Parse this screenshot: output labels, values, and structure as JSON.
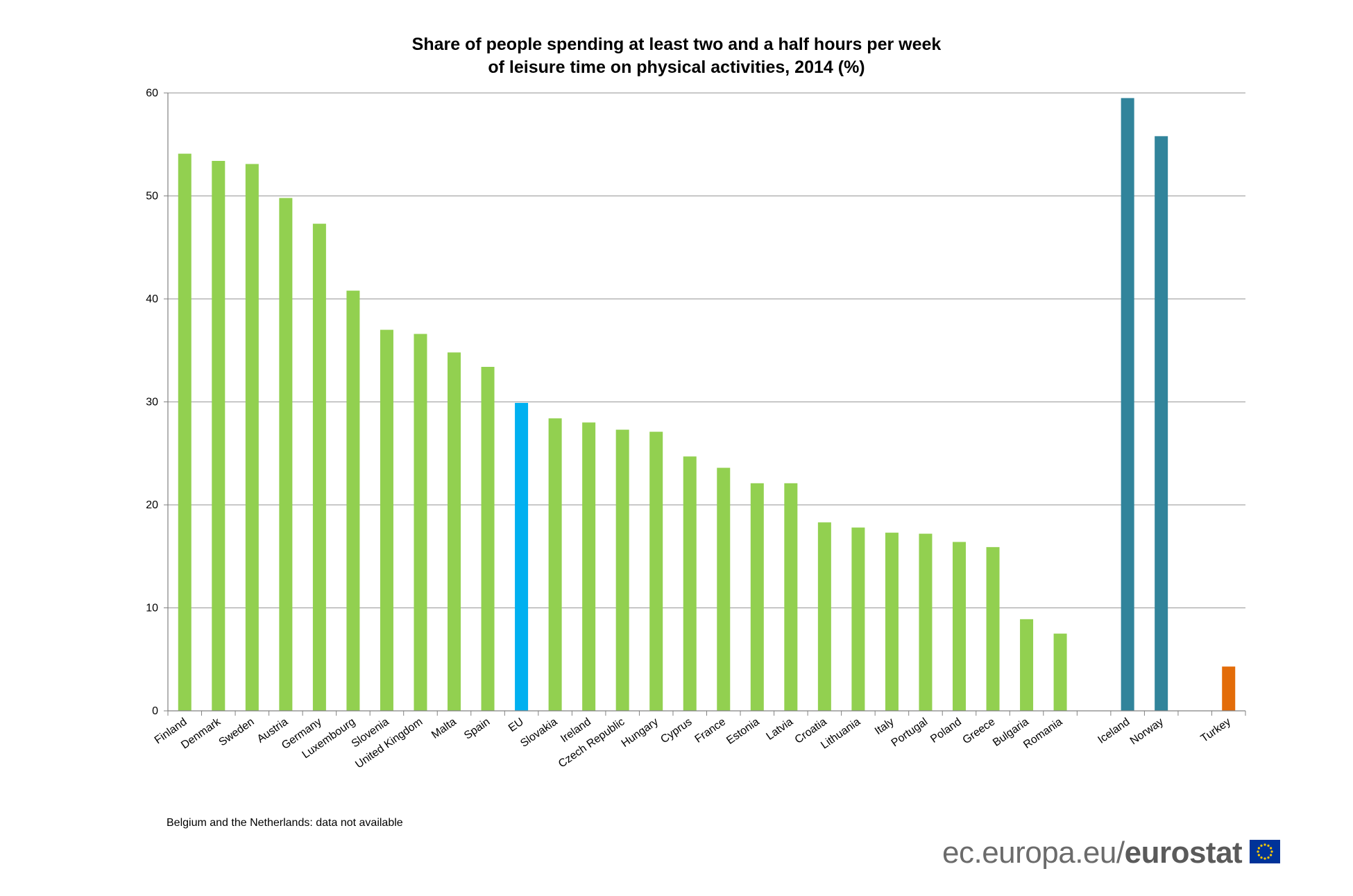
{
  "footnote": "Belgium and the Netherlands:  data not available",
  "logo": {
    "prefix": "ec.europa.eu/",
    "brand": "eurostat",
    "flag_icon": "eu-flag-icon"
  },
  "colors": {
    "member_state": "#92d050",
    "eu": "#00b0f0",
    "efta": "#31849b",
    "candidate": "#e36c09",
    "grid": "#a6a6a6"
  },
  "chart_data": {
    "type": "bar",
    "title": [
      "Share of people spending at least two and a half hours per week",
      "of leisure time on physical activities, 2014 (%)"
    ],
    "xlabel": "",
    "ylabel": "",
    "ylim": [
      0,
      60
    ],
    "yticks": [
      0,
      10,
      20,
      30,
      40,
      50,
      60
    ],
    "grid": true,
    "legend": "none",
    "categories": [
      "Finland",
      "Denmark",
      "Sweden",
      "Austria",
      "Germany",
      "Luxembourg",
      "Slovenia",
      "United Kingdom",
      "Malta",
      "Spain",
      "EU",
      "Slovakia",
      "Ireland",
      "Czech Republic",
      "Hungary",
      "Cyprus",
      "France",
      "Estonia",
      "Latvia",
      "Croatia",
      "Lithuania",
      "Italy",
      "Portugal",
      "Poland",
      "Greece",
      "Bulgaria",
      "Romania",
      "",
      "Iceland",
      "Norway",
      "",
      "Turkey"
    ],
    "values": [
      54.1,
      53.4,
      53.1,
      49.8,
      47.3,
      40.8,
      37.0,
      36.6,
      34.8,
      33.4,
      29.9,
      28.4,
      28.0,
      27.3,
      27.1,
      24.7,
      23.6,
      22.1,
      22.1,
      18.3,
      17.8,
      17.3,
      17.2,
      16.4,
      15.9,
      8.9,
      7.5,
      null,
      59.5,
      55.8,
      null,
      4.3
    ],
    "groups": [
      "member_state",
      "member_state",
      "member_state",
      "member_state",
      "member_state",
      "member_state",
      "member_state",
      "member_state",
      "member_state",
      "member_state",
      "eu",
      "member_state",
      "member_state",
      "member_state",
      "member_state",
      "member_state",
      "member_state",
      "member_state",
      "member_state",
      "member_state",
      "member_state",
      "member_state",
      "member_state",
      "member_state",
      "member_state",
      "member_state",
      "member_state",
      "gap",
      "efta",
      "efta",
      "gap",
      "candidate"
    ]
  }
}
